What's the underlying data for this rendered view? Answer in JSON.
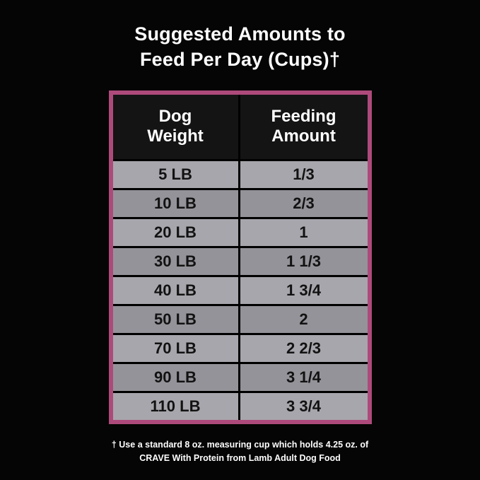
{
  "title": {
    "line1": "Suggested Amounts to",
    "line2": "Feed Per Day (Cups)†"
  },
  "table": {
    "headers": [
      {
        "line1": "Dog",
        "line2": "Weight"
      },
      {
        "line1": "Feeding",
        "line2": "Amount"
      }
    ],
    "rows": [
      {
        "weight": "5 LB",
        "amount": "1/3"
      },
      {
        "weight": "10 LB",
        "amount": "2/3"
      },
      {
        "weight": "20 LB",
        "amount": "1"
      },
      {
        "weight": "30 LB",
        "amount": "1 1/3"
      },
      {
        "weight": "40 LB",
        "amount": "1 3/4"
      },
      {
        "weight": "50 LB",
        "amount": "2"
      },
      {
        "weight": "70 LB",
        "amount": "2 2/3"
      },
      {
        "weight": "90 LB",
        "amount": "3 1/4"
      },
      {
        "weight": "110 LB",
        "amount": "3 3/4"
      }
    ]
  },
  "footnote": {
    "line1": "† Use a standard 8 oz. measuring cup which holds 4.25 oz. of",
    "line2": "CRAVE With Protein from Lamb Adult Dog Food"
  },
  "colors": {
    "background": "#000000",
    "table_border_pink": "#ae4a7b",
    "header_background": "#141414",
    "row_light_gray": "#a7a6ac",
    "row_dark_gray": "#949399",
    "text_white": "#ffffff",
    "text_black": "#121212"
  },
  "chart_data": {
    "type": "table",
    "title": "Suggested Amounts to Feed Per Day (Cups)†",
    "columns": [
      "Dog Weight",
      "Feeding Amount"
    ],
    "rows": [
      [
        "5 LB",
        "1/3"
      ],
      [
        "10 LB",
        "2/3"
      ],
      [
        "20 LB",
        "1"
      ],
      [
        "30 LB",
        "1 1/3"
      ],
      [
        "40 LB",
        "1 3/4"
      ],
      [
        "50 LB",
        "2"
      ],
      [
        "70 LB",
        "2 2/3"
      ],
      [
        "90 LB",
        "3 1/4"
      ],
      [
        "110 LB",
        "3 3/4"
      ]
    ],
    "footnote": "† Use a standard 8 oz. measuring cup which holds 4.25 oz. of CRAVE With Protein from Lamb Adult Dog Food"
  }
}
